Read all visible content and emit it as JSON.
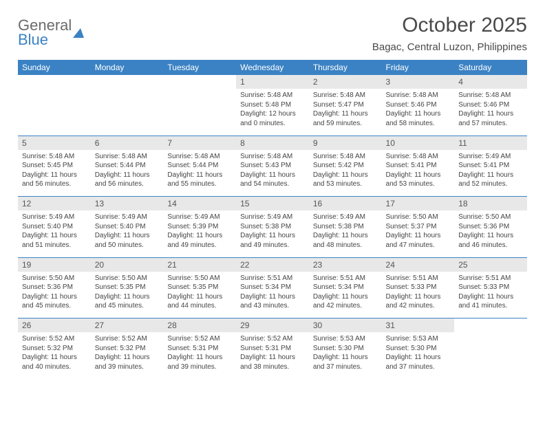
{
  "logo": {
    "text1": "General",
    "text2": "Blue"
  },
  "title": "October 2025",
  "location": "Bagac, Central Luzon, Philippines",
  "colors": {
    "header_bg": "#3b82c4",
    "header_fg": "#ffffff",
    "daynum_bg": "#e8e8e8",
    "text": "#444444",
    "title_color": "#4a4a4a",
    "page_bg": "#ffffff"
  },
  "typography": {
    "title_fontsize": 30,
    "location_fontsize": 15,
    "dayheader_fontsize": 12,
    "daynum_fontsize": 12,
    "cell_fontsize": 10
  },
  "dayHeaders": [
    "Sunday",
    "Monday",
    "Tuesday",
    "Wednesday",
    "Thursday",
    "Friday",
    "Saturday"
  ],
  "weeks": [
    [
      null,
      null,
      null,
      {
        "n": "1",
        "sr": "5:48 AM",
        "ss": "5:48 PM",
        "dl": "12 hours and 0 minutes."
      },
      {
        "n": "2",
        "sr": "5:48 AM",
        "ss": "5:47 PM",
        "dl": "11 hours and 59 minutes."
      },
      {
        "n": "3",
        "sr": "5:48 AM",
        "ss": "5:46 PM",
        "dl": "11 hours and 58 minutes."
      },
      {
        "n": "4",
        "sr": "5:48 AM",
        "ss": "5:46 PM",
        "dl": "11 hours and 57 minutes."
      }
    ],
    [
      {
        "n": "5",
        "sr": "5:48 AM",
        "ss": "5:45 PM",
        "dl": "11 hours and 56 minutes."
      },
      {
        "n": "6",
        "sr": "5:48 AM",
        "ss": "5:44 PM",
        "dl": "11 hours and 56 minutes."
      },
      {
        "n": "7",
        "sr": "5:48 AM",
        "ss": "5:44 PM",
        "dl": "11 hours and 55 minutes."
      },
      {
        "n": "8",
        "sr": "5:48 AM",
        "ss": "5:43 PM",
        "dl": "11 hours and 54 minutes."
      },
      {
        "n": "9",
        "sr": "5:48 AM",
        "ss": "5:42 PM",
        "dl": "11 hours and 53 minutes."
      },
      {
        "n": "10",
        "sr": "5:48 AM",
        "ss": "5:41 PM",
        "dl": "11 hours and 53 minutes."
      },
      {
        "n": "11",
        "sr": "5:49 AM",
        "ss": "5:41 PM",
        "dl": "11 hours and 52 minutes."
      }
    ],
    [
      {
        "n": "12",
        "sr": "5:49 AM",
        "ss": "5:40 PM",
        "dl": "11 hours and 51 minutes."
      },
      {
        "n": "13",
        "sr": "5:49 AM",
        "ss": "5:40 PM",
        "dl": "11 hours and 50 minutes."
      },
      {
        "n": "14",
        "sr": "5:49 AM",
        "ss": "5:39 PM",
        "dl": "11 hours and 49 minutes."
      },
      {
        "n": "15",
        "sr": "5:49 AM",
        "ss": "5:38 PM",
        "dl": "11 hours and 49 minutes."
      },
      {
        "n": "16",
        "sr": "5:49 AM",
        "ss": "5:38 PM",
        "dl": "11 hours and 48 minutes."
      },
      {
        "n": "17",
        "sr": "5:50 AM",
        "ss": "5:37 PM",
        "dl": "11 hours and 47 minutes."
      },
      {
        "n": "18",
        "sr": "5:50 AM",
        "ss": "5:36 PM",
        "dl": "11 hours and 46 minutes."
      }
    ],
    [
      {
        "n": "19",
        "sr": "5:50 AM",
        "ss": "5:36 PM",
        "dl": "11 hours and 45 minutes."
      },
      {
        "n": "20",
        "sr": "5:50 AM",
        "ss": "5:35 PM",
        "dl": "11 hours and 45 minutes."
      },
      {
        "n": "21",
        "sr": "5:50 AM",
        "ss": "5:35 PM",
        "dl": "11 hours and 44 minutes."
      },
      {
        "n": "22",
        "sr": "5:51 AM",
        "ss": "5:34 PM",
        "dl": "11 hours and 43 minutes."
      },
      {
        "n": "23",
        "sr": "5:51 AM",
        "ss": "5:34 PM",
        "dl": "11 hours and 42 minutes."
      },
      {
        "n": "24",
        "sr": "5:51 AM",
        "ss": "5:33 PM",
        "dl": "11 hours and 42 minutes."
      },
      {
        "n": "25",
        "sr": "5:51 AM",
        "ss": "5:33 PM",
        "dl": "11 hours and 41 minutes."
      }
    ],
    [
      {
        "n": "26",
        "sr": "5:52 AM",
        "ss": "5:32 PM",
        "dl": "11 hours and 40 minutes."
      },
      {
        "n": "27",
        "sr": "5:52 AM",
        "ss": "5:32 PM",
        "dl": "11 hours and 39 minutes."
      },
      {
        "n": "28",
        "sr": "5:52 AM",
        "ss": "5:31 PM",
        "dl": "11 hours and 39 minutes."
      },
      {
        "n": "29",
        "sr": "5:52 AM",
        "ss": "5:31 PM",
        "dl": "11 hours and 38 minutes."
      },
      {
        "n": "30",
        "sr": "5:53 AM",
        "ss": "5:30 PM",
        "dl": "11 hours and 37 minutes."
      },
      {
        "n": "31",
        "sr": "5:53 AM",
        "ss": "5:30 PM",
        "dl": "11 hours and 37 minutes."
      },
      null
    ]
  ],
  "labels": {
    "sunrise": "Sunrise: ",
    "sunset": "Sunset: ",
    "daylight": "Daylight: "
  }
}
